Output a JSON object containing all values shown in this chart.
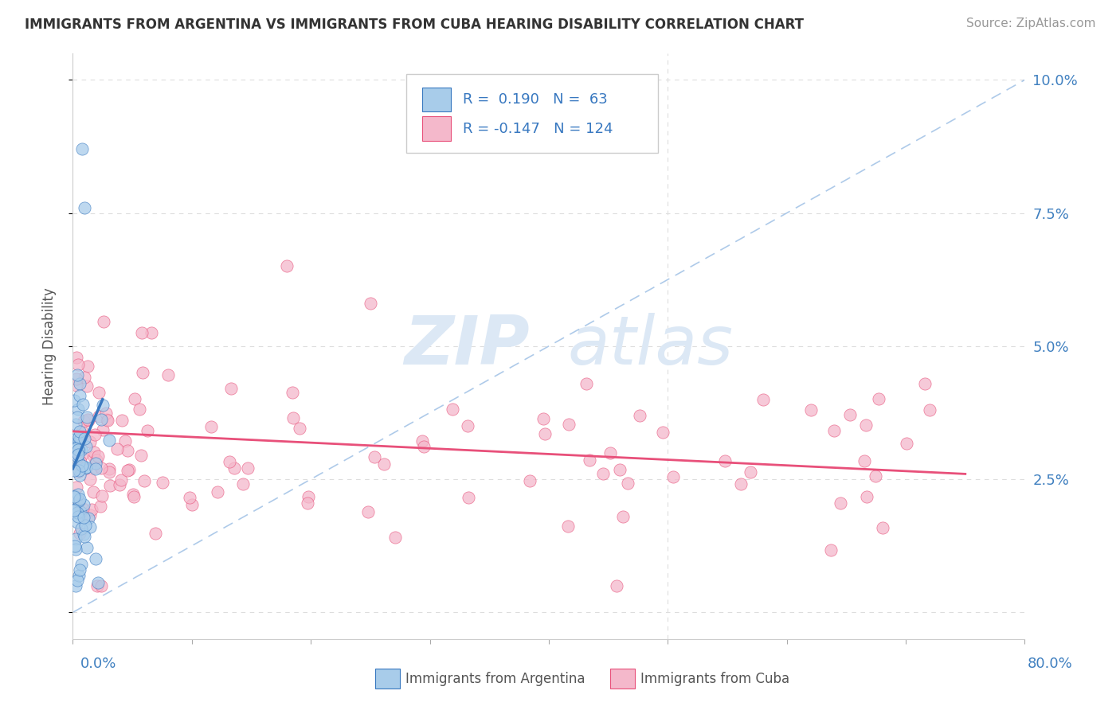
{
  "title": "IMMIGRANTS FROM ARGENTINA VS IMMIGRANTS FROM CUBA HEARING DISABILITY CORRELATION CHART",
  "source": "Source: ZipAtlas.com",
  "ylabel": "Hearing Disability",
  "yticks": [
    0.0,
    0.025,
    0.05,
    0.075,
    0.1
  ],
  "ytick_labels": [
    "",
    "2.5%",
    "5.0%",
    "7.5%",
    "10.0%"
  ],
  "xlim": [
    0.0,
    0.8
  ],
  "ylim": [
    -0.005,
    0.105
  ],
  "watermark_zip": "ZIP",
  "watermark_atlas": "atlas",
  "color_argentina": "#A8CCEA",
  "color_cuba": "#F4B8CB",
  "color_argentina_line": "#3878C0",
  "color_cuba_line": "#E8507A",
  "color_ref_line": "#8CB4E0",
  "legend_text1": "R =  0.190   N =  63",
  "legend_text2": "R = -0.147   N = 124"
}
